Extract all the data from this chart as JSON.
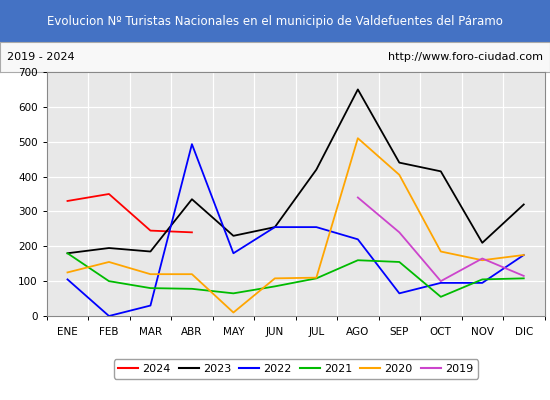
{
  "title": "Evolucion Nº Turistas Nacionales en el municipio de Valdefuentes del Páramo",
  "subtitle_left": "2019 - 2024",
  "subtitle_right": "http://www.foro-ciudad.com",
  "months": [
    "ENE",
    "FEB",
    "MAR",
    "ABR",
    "MAY",
    "JUN",
    "JUL",
    "AGO",
    "SEP",
    "OCT",
    "NOV",
    "DIC"
  ],
  "ylim": [
    0,
    700
  ],
  "yticks": [
    0,
    100,
    200,
    300,
    400,
    500,
    600,
    700
  ],
  "series": {
    "2024": {
      "color": "#ff0000",
      "values": [
        330,
        350,
        245,
        240,
        null,
        null,
        null,
        null,
        null,
        null,
        null,
        null
      ]
    },
    "2023": {
      "color": "#000000",
      "values": [
        180,
        195,
        185,
        335,
        230,
        255,
        420,
        650,
        440,
        415,
        210,
        320
      ]
    },
    "2022": {
      "color": "#0000ff",
      "values": [
        105,
        0,
        30,
        493,
        180,
        255,
        255,
        220,
        65,
        95,
        95,
        175
      ]
    },
    "2021": {
      "color": "#00bb00",
      "values": [
        180,
        100,
        80,
        78,
        65,
        85,
        108,
        160,
        155,
        55,
        105,
        108
      ]
    },
    "2020": {
      "color": "#ffa500",
      "values": [
        125,
        155,
        120,
        120,
        10,
        108,
        110,
        510,
        405,
        185,
        160,
        175
      ]
    },
    "2019": {
      "color": "#cc44cc",
      "values": [
        null,
        null,
        null,
        null,
        null,
        null,
        null,
        340,
        240,
        100,
        165,
        115
      ]
    }
  },
  "title_bg_color": "#4472c4",
  "title_text_color": "#ffffff",
  "plot_bg_color": "#e8e8e8",
  "grid_color": "#ffffff",
  "border_color": "#888888",
  "outer_bg_color": "#ffffff",
  "legend_order": [
    "2024",
    "2023",
    "2022",
    "2021",
    "2020",
    "2019"
  ]
}
